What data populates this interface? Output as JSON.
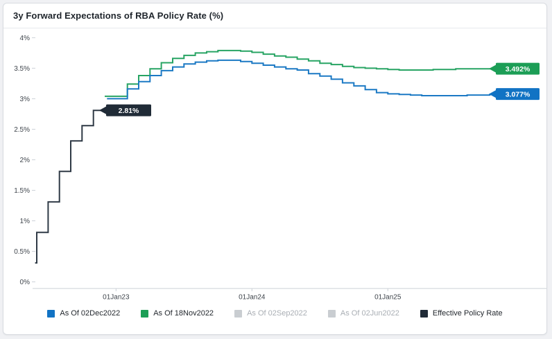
{
  "card": {
    "title": "3y Forward Expectations of RBA Policy Rate (%)"
  },
  "colors": {
    "page_bg": "#f0f1f4",
    "card_bg": "#ffffff",
    "axis_line": "#ccd1d7",
    "tick_text": "#3f454c",
    "blue_line": "#1b79c4",
    "blue_box": "#1173c4",
    "green_line": "#27a463",
    "green_box": "#1c9e56",
    "black_line": "#2e3945",
    "black_box": "#202b37",
    "disabled_swatch": "#c9cdd1",
    "legend_text_active": "#22272d",
    "legend_text_disabled": "#a9aeb4"
  },
  "chart_data": {
    "type": "line",
    "subtype": "step-after",
    "title": "3y Forward Expectations of RBA Policy Rate (%)",
    "xlabel": "",
    "ylabel": "",
    "x_unit": "months_from_Dec2022",
    "x_ticks": [
      {
        "month": 1,
        "label": "01Jan23"
      },
      {
        "month": 13,
        "label": "01Jan24"
      },
      {
        "month": 25,
        "label": "01Jan25"
      }
    ],
    "y_ticks": [
      {
        "value": 0,
        "label": "0%"
      },
      {
        "value": 0.5,
        "label": "0.5%"
      },
      {
        "value": 1,
        "label": "1%"
      },
      {
        "value": 1.5,
        "label": "1.5%"
      },
      {
        "value": 2,
        "label": "2%"
      },
      {
        "value": 2.5,
        "label": "2.5%"
      },
      {
        "value": 3,
        "label": "3%"
      },
      {
        "value": 3.5,
        "label": "3.5%"
      },
      {
        "value": 4,
        "label": "4%"
      }
    ],
    "ylim": [
      0,
      4
    ],
    "grid": false,
    "legend_position": "bottom",
    "series": [
      {
        "name": "Effective Policy Rate",
        "color_key": "black_line",
        "box_key": "black_box",
        "end_label": "2.81%",
        "end_month": 0.15,
        "points": [
          [
            -6.15,
            0.31
          ],
          [
            -6,
            0.81
          ],
          [
            -5,
            1.31
          ],
          [
            -4,
            1.81
          ],
          [
            -3,
            2.31
          ],
          [
            -2,
            2.56
          ],
          [
            -1,
            2.81
          ]
        ]
      },
      {
        "name": "As Of 18Nov2022",
        "color_key": "green_line",
        "box_key": "green_box",
        "end_label": "3.492%",
        "start_month": 0,
        "end_month": 35,
        "values": [
          3.04,
          3.04,
          3.24,
          3.38,
          3.49,
          3.59,
          3.66,
          3.71,
          3.75,
          3.77,
          3.79,
          3.79,
          3.78,
          3.76,
          3.73,
          3.7,
          3.68,
          3.65,
          3.62,
          3.58,
          3.56,
          3.53,
          3.51,
          3.5,
          3.49,
          3.48,
          3.47,
          3.47,
          3.47,
          3.48,
          3.48,
          3.49,
          3.49,
          3.49,
          3.49,
          3.492
        ]
      },
      {
        "name": "As Of 02Dec2022",
        "color_key": "blue_line",
        "box_key": "blue_box",
        "end_label": "3.077%",
        "start_month": 0.2,
        "end_month": 35,
        "values": [
          3.0,
          3.0,
          3.16,
          3.28,
          3.38,
          3.46,
          3.52,
          3.57,
          3.6,
          3.62,
          3.63,
          3.63,
          3.61,
          3.58,
          3.55,
          3.52,
          3.49,
          3.47,
          3.41,
          3.37,
          3.32,
          3.26,
          3.21,
          3.15,
          3.1,
          3.08,
          3.07,
          3.06,
          3.05,
          3.05,
          3.05,
          3.05,
          3.06,
          3.06,
          3.07,
          3.077
        ]
      }
    ]
  },
  "legend": {
    "items": [
      {
        "label": "As Of 02Dec2022",
        "swatch_key": "blue_box",
        "active": true
      },
      {
        "label": "As Of 18Nov2022",
        "swatch_key": "green_box",
        "active": true
      },
      {
        "label": "As Of 02Sep2022",
        "swatch_key": "disabled_swatch",
        "active": false
      },
      {
        "label": "As Of 02Jun2022",
        "swatch_key": "disabled_swatch",
        "active": false
      },
      {
        "label": "Effective Policy Rate",
        "swatch_key": "black_box",
        "active": true
      }
    ]
  }
}
